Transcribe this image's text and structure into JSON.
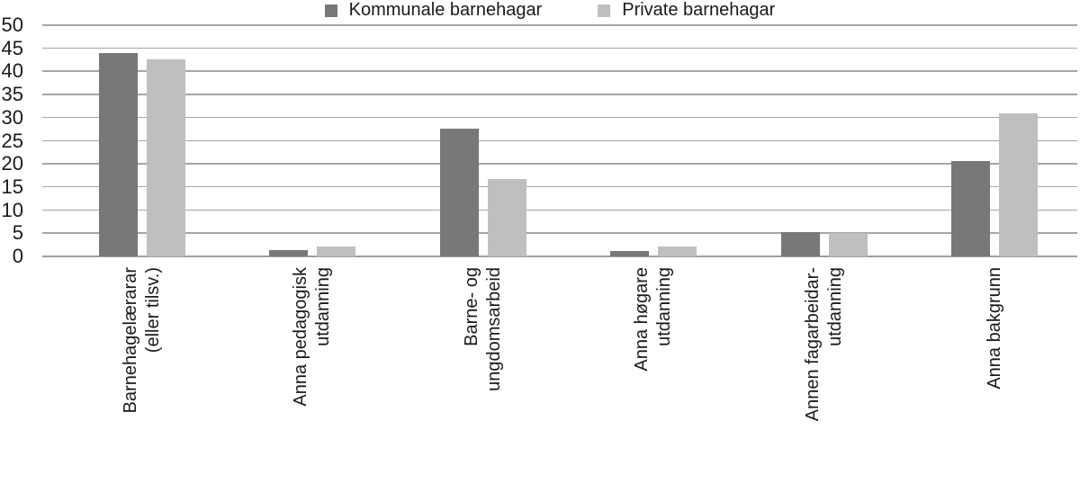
{
  "chart_data": {
    "type": "bar",
    "title": "",
    "xlabel": "",
    "ylabel": "",
    "categories": [
      "Barnehagelærarar (eller tilsv.)",
      "Anna pedagogisk utdanning",
      "Barne- og ungdomsarbeid",
      "Anna høgare utdanning",
      "Annen fagarbeidar-utdanning",
      "Anna bakgrunn"
    ],
    "category_lines": [
      [
        "Barnehagelærarar",
        "(eller tilsv.)"
      ],
      [
        "Anna pedagogisk",
        "utdanning"
      ],
      [
        "Barne- og",
        "ungdomsarbeid"
      ],
      [
        "Anna høgare",
        "utdanning"
      ],
      [
        "Annen fagarbeidar-",
        "utdanning"
      ],
      [
        "Anna bakgrunn"
      ]
    ],
    "series": [
      {
        "name": "Kommunale barnehagar",
        "color": "#787878",
        "values": [
          44,
          1.3,
          27.7,
          1.2,
          5.2,
          20.6
        ]
      },
      {
        "name": "Private barnehagar",
        "color": "#bfbfbf",
        "values": [
          42.7,
          2.2,
          16.7,
          2.2,
          5.0,
          30.9
        ]
      }
    ],
    "y_axis": {
      "min": 0,
      "max": 50,
      "step": 5,
      "tick_labels": [
        "0",
        "5",
        "10",
        "15",
        "20",
        "25",
        "30",
        "35",
        "40",
        "45",
        "50"
      ]
    },
    "grid": true,
    "legend_position": "bottom",
    "colors": {
      "gridline": "#a6a6a6",
      "text": "#1a1a1a"
    }
  }
}
